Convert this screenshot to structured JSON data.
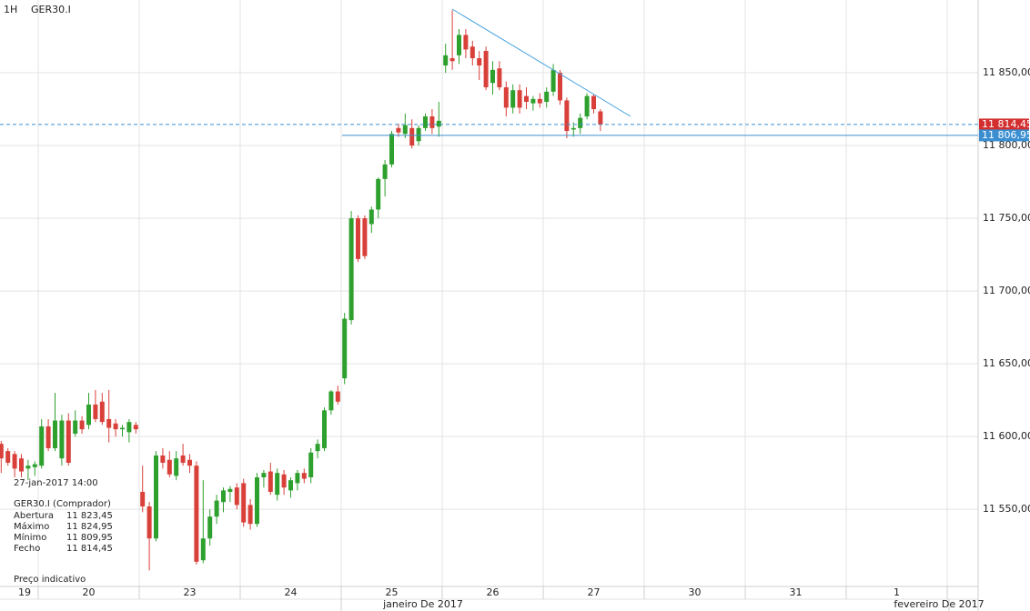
{
  "chart_data": {
    "type": "candlestick",
    "timeframe": "1H",
    "title": "GER30.I",
    "up_color": "#2ea02e",
    "down_color": "#d9403a",
    "grid": true,
    "x_labels": [
      "19",
      "20",
      "23",
      "24",
      "25",
      "26",
      "27",
      "30",
      "31",
      "1"
    ],
    "month_labels": [
      "janeiro De 2017",
      "fevereiro De 2017"
    ],
    "ylim": [
      11497,
      11900
    ],
    "yticks": [
      {
        "value": 11550,
        "label": "11 550,00"
      },
      {
        "value": 11600,
        "label": "11 600,00"
      },
      {
        "value": 11650,
        "label": "11 650,00"
      },
      {
        "value": 11700,
        "label": "11 700,00"
      },
      {
        "value": 11750,
        "label": "11 750,00"
      },
      {
        "value": 11800,
        "label": "11 800,00"
      },
      {
        "value": 11850,
        "label": "11 850,00"
      }
    ],
    "price_lines": [
      {
        "value": 11814.45,
        "label": "11 814,45",
        "color": "#d32f2f",
        "style": "dashed"
      },
      {
        "value": 11806.95,
        "label": "11 806,95",
        "color": "#3b8fd1",
        "style": "solid"
      }
    ],
    "open": [
      11595,
      11590,
      11588,
      11585,
      11578,
      11579,
      11580,
      11607,
      11592,
      11585,
      11611,
      11602,
      11611,
      11608,
      11622,
      11624,
      11612,
      11609,
      11605,
      11603,
      11608,
      11562,
      11552,
      11530,
      11587,
      11584,
      11573,
      11587,
      11584,
      11580,
      11515,
      11530,
      11545,
      11555,
      11562,
      11565,
      11568,
      11553,
      11540,
      11572,
      11576,
      11560,
      11574,
      11563,
      11568,
      11575,
      11572,
      11590,
      11592,
      11618,
      11631,
      11640,
      11680,
      11750,
      11750,
      11746,
      11756,
      11777,
      11787,
      11812,
      11808,
      11812,
      11803,
      11812,
      11820,
      11813,
      11855,
      11860,
      11862,
      11876,
      11868,
      11860,
      11865,
      11843,
      11853,
      11840,
      11826,
      11838,
      11834,
      11829,
      11832,
      11830,
      11837,
      11850,
      11831,
      11811,
      11812,
      11820,
      11834,
      11823.45
    ],
    "high": [
      11597,
      11592,
      11590,
      11588,
      11584,
      11583,
      11612,
      11612,
      11630,
      11615,
      11616,
      11618,
      11614,
      11630,
      11632,
      11630,
      11632,
      11612,
      11608,
      11612,
      11610,
      11580,
      11555,
      11590,
      11592,
      11590,
      11590,
      11595,
      11588,
      11583,
      11570,
      11550,
      11560,
      11565,
      11566,
      11568,
      11571,
      11557,
      11575,
      11577,
      11582,
      11578,
      11577,
      11572,
      11577,
      11578,
      11592,
      11598,
      11620,
      11632,
      11635,
      11685,
      11755,
      11752,
      11752,
      11758,
      11778,
      11790,
      11810,
      11815,
      11822,
      11818,
      11814,
      11822,
      11825,
      11830,
      11870,
      11893,
      11880,
      11880,
      11872,
      11865,
      11868,
      11858,
      11858,
      11844,
      11842,
      11842,
      11840,
      11834,
      11836,
      11840,
      11856,
      11852,
      11833,
      11816,
      11822,
      11836,
      11835,
      11824.95
    ],
    "low": [
      11575,
      11580,
      11572,
      11572,
      11570,
      11573,
      11578,
      11590,
      11590,
      11580,
      11580,
      11600,
      11602,
      11605,
      11610,
      11608,
      11596,
      11600,
      11600,
      11596,
      11602,
      11548,
      11508,
      11528,
      11578,
      11572,
      11570,
      11580,
      11575,
      11512,
      11513,
      11525,
      11540,
      11548,
      11555,
      11550,
      11538,
      11536,
      11538,
      11565,
      11560,
      11556,
      11560,
      11558,
      11563,
      11568,
      11568,
      11585,
      11590,
      11615,
      11622,
      11636,
      11677,
      11720,
      11722,
      11740,
      11750,
      11765,
      11785,
      11806,
      11805,
      11798,
      11800,
      11810,
      11808,
      11806,
      11850,
      11852,
      11856,
      11860,
      11855,
      11845,
      11838,
      11835,
      11838,
      11820,
      11822,
      11822,
      11825,
      11824,
      11826,
      11826,
      11834,
      11828,
      11805,
      11806,
      11808,
      11818,
      11822,
      11809.95
    ],
    "close": [
      11585,
      11582,
      11578,
      11576,
      11580,
      11581,
      11607,
      11592,
      11611,
      11611,
      11582,
      11611,
      11605,
      11622,
      11612,
      11610,
      11606,
      11605,
      11606,
      11610,
      11605,
      11552,
      11530,
      11587,
      11582,
      11574,
      11585,
      11582,
      11580,
      11514,
      11530,
      11545,
      11556,
      11563,
      11564,
      11553,
      11541,
      11540,
      11572,
      11575,
      11562,
      11575,
      11565,
      11570,
      11575,
      11571,
      11589,
      11595,
      11618,
      11631,
      11624,
      11681,
      11750,
      11722,
      11724,
      11756,
      11777,
      11787,
      11808,
      11809,
      11814,
      11800,
      11812,
      11820,
      11812,
      11817,
      11862,
      11858,
      11876,
      11866,
      11860,
      11855,
      11840,
      11852,
      11840,
      11826,
      11838,
      11826,
      11830,
      11832,
      11829,
      11837,
      11852,
      11831,
      11810,
      11812,
      11819,
      11834,
      11825,
      11814.45
    ],
    "info": {
      "time": "27-jan-2017 14:00",
      "instrument": "GER30.I (Comprador)",
      "rows": [
        [
          "Abertura",
          "11 823,45"
        ],
        [
          "Máximo",
          "11 824,95"
        ],
        [
          "Mínimo",
          "11 809,95"
        ],
        [
          "Fecho",
          "11 814,45"
        ]
      ],
      "note": "Preço indicativo"
    }
  }
}
